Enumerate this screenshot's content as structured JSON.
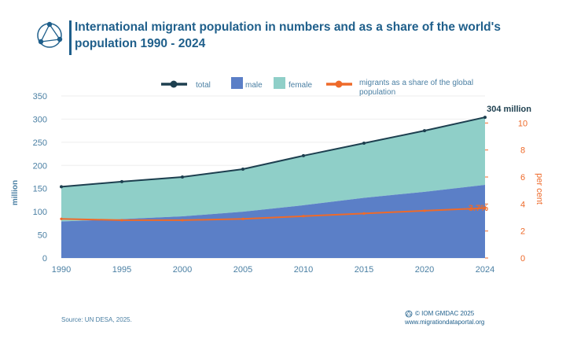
{
  "title": "International migrant population in numbers and as a share of the world's population 1990 - 2024",
  "source": "Source: UN DESA, 2025.",
  "credit": {
    "copyright": "© IOM GMDAC 2025",
    "website": "www.migrationdataportal.org"
  },
  "colors": {
    "title": "#1f5f8b",
    "total": "#1d3f4f",
    "male": "#5b7fc7",
    "female": "#8fcfc8",
    "share": "#ee6a2a",
    "axis_left": "#4a7fa3",
    "axis_right": "#ee6a2a"
  },
  "chart_data": {
    "type": "area",
    "categories": [
      "1990",
      "1995",
      "2000",
      "2005",
      "2010",
      "2015",
      "2020",
      "2024"
    ],
    "series": [
      {
        "name": "total",
        "kind": "line",
        "axis": "left",
        "values": [
          154,
          165,
          175,
          192,
          221,
          248,
          275,
          304
        ]
      },
      {
        "name": "male",
        "kind": "area",
        "axis": "left",
        "values": [
          79,
          84,
          90,
          100,
          114,
          130,
          143,
          158
        ]
      },
      {
        "name": "female",
        "kind": "area",
        "axis": "left",
        "values": [
          75,
          81,
          85,
          92,
          107,
          118,
          132,
          146
        ]
      },
      {
        "name": "migrants as a share of the global population",
        "kind": "line",
        "axis": "right",
        "values": [
          2.9,
          2.8,
          2.8,
          2.9,
          3.1,
          3.3,
          3.5,
          3.7
        ]
      }
    ],
    "ylabel": "million",
    "y2label": "per cent",
    "ylim": [
      0,
      350
    ],
    "y2lim": [
      0,
      12
    ],
    "yticks": [
      "0",
      "50",
      "100",
      "150",
      "200",
      "250",
      "300",
      "350"
    ],
    "y2ticks": [
      "0",
      "2",
      "4",
      "6",
      "8",
      "10"
    ],
    "annotations": [
      {
        "text": "304 million",
        "target": "total",
        "category": "2024"
      },
      {
        "text": "3.7%",
        "target": "share",
        "category": "2024"
      }
    ],
    "legend_position": "top",
    "grid": true
  }
}
